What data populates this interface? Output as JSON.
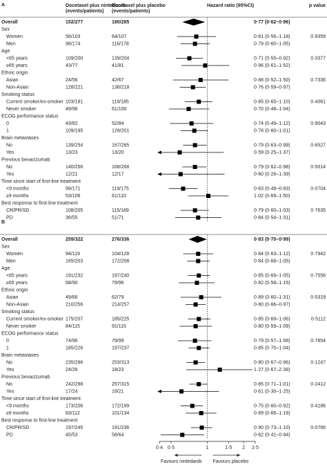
{
  "chart_data": [
    {
      "type": "forest",
      "title": "A",
      "log": true,
      "xlim": [
        0.4,
        2.5
      ],
      "headers": {
        "nintedanib": [
          "Docetaxel plus nintedanib",
          "(events/patients)"
        ],
        "placebo": [
          "Docetaxel plus placebo",
          "(events/patients)"
        ],
        "hr": "Hazard ratio (95%CI)",
        "p": "p value"
      },
      "rows": [
        {
          "label": "Overall",
          "nintedanib": "152/277",
          "placebo": "180/285",
          "hr": 0.77,
          "ci": [
            0.62,
            0.96
          ],
          "hr_label": "0·77 (0·62–0·96)",
          "marker": "diamond"
        },
        {
          "label": "Sex"
        },
        {
          "label": "Women",
          "nintedanib": "56/103",
          "placebo": "64/107",
          "hr": 0.81,
          "ci": [
            0.56,
            1.18
          ],
          "hr_label": "0·81 (0·56–1·18)",
          "p": "0·9359"
        },
        {
          "label": "Men",
          "nintedanib": "96/174",
          "placebo": "116/178",
          "hr": 0.79,
          "ci": [
            0.6,
            1.05
          ],
          "hr_label": "0·79 (0·60–1·05)"
        },
        {
          "label": "Age"
        },
        {
          "label": "<65 years",
          "nintedanib": "109/200",
          "placebo": "139/204",
          "hr": 0.71,
          "ci": [
            0.55,
            0.92
          ],
          "hr_label": "0·71 (0·55–0·92)",
          "p": "0·3377"
        },
        {
          "label": "≥65 years",
          "nintedanib": "43/77",
          "placebo": "41/81",
          "hr": 0.96,
          "ci": [
            0.61,
            1.52
          ],
          "hr_label": "0·96 (0·61–1·52)"
        },
        {
          "label": "Ethnic origin"
        },
        {
          "label": "Asian",
          "nintedanib": "24/56",
          "placebo": "42/67",
          "hr": 0.88,
          "ci": [
            0.52,
            1.5
          ],
          "hr_label": "0·88 (0·52–1·50)",
          "p": "0·7336"
        },
        {
          "label": "Non-Asian",
          "nintedanib": "128/221",
          "placebo": "138/218",
          "hr": 0.76,
          "ci": [
            0.59,
            0.97
          ],
          "hr_label": "0·76 (0·59–0·97)"
        },
        {
          "label": "Smoking status"
        },
        {
          "label": "Current smoker/ex-smoker",
          "nintedanib": "103/181",
          "placebo": "119/185",
          "hr": 0.85,
          "ci": [
            0.65,
            1.1
          ],
          "hr_label": "0·85 (0·65–1·10)",
          "p": "0·4061"
        },
        {
          "label": "Never smoker",
          "nintedanib": "49/96",
          "placebo": "61/100",
          "hr": 0.7,
          "ci": [
            0.48,
            1.04
          ],
          "hr_label": "0·70 (0·48–1·04)"
        },
        {
          "label": "ECOG performance status"
        },
        {
          "label": "0",
          "nintedanib": "43/82",
          "placebo": "52/84",
          "hr": 0.74,
          "ci": [
            0.49,
            1.12
          ],
          "hr_label": "0·74 (0·49–1·12)",
          "p": "0·9043"
        },
        {
          "label": "1",
          "nintedanib": "109/195",
          "placebo": "128/201",
          "hr": 0.78,
          "ci": [
            0.6,
            1.01
          ],
          "hr_label": "0·78 (0·60–1·01)"
        },
        {
          "label": "Brain metastases"
        },
        {
          "label": "No",
          "nintedanib": "139/254",
          "placebo": "167/265",
          "hr": 0.79,
          "ci": [
            0.63,
            0.99
          ],
          "hr_label": "0·79 (0·63–0·99)",
          "p": "0·6527"
        },
        {
          "label": "Yes",
          "nintedanib": "13/23",
          "placebo": "13/20",
          "hr": 0.59,
          "ci": [
            0.25,
            1.37
          ],
          "hr_label": "0·59 (0·25–1·37)"
        },
        {
          "label": "Previous bevacizumab"
        },
        {
          "label": "No",
          "nintedanib": "140/256",
          "placebo": "168/268",
          "hr": 0.79,
          "ci": [
            0.62,
            0.98
          ],
          "hr_label": "0·79 (0·62–0·98)",
          "p": "0·5014"
        },
        {
          "label": "Yes",
          "nintedanib": "12/21",
          "placebo": "12/17",
          "hr": 0.6,
          "ci": [
            0.26,
            1.39
          ],
          "hr_label": "0·60 (0·26–1·39)"
        },
        {
          "label": "Time since start of first-line treatment"
        },
        {
          "label": "<9 months",
          "nintedanib": "99/171",
          "placebo": "119/175",
          "hr": 0.63,
          "ci": [
            0.48,
            0.83
          ],
          "hr_label": "0·63 (0·48–0·83)",
          "p": "0·0704"
        },
        {
          "label": "≥9 months",
          "nintedanib": "53/106",
          "placebo": "61/110",
          "hr": 1.02,
          "ci": [
            0.69,
            1.5
          ],
          "hr_label": "1·02 (0·69–1·50)"
        },
        {
          "label": "Best response to first-line treatment"
        },
        {
          "label": "CR/PR/SD",
          "nintedanib": "108/205",
          "placebo": "115/189",
          "hr": 0.79,
          "ci": [
            0.6,
            1.03
          ],
          "hr_label": "0·79 (0·60–1·03)",
          "p": "0·7635"
        },
        {
          "label": "PD",
          "nintedanib": "36/55",
          "placebo": "51/71",
          "hr": 0.84,
          "ci": [
            0.54,
            1.31
          ],
          "hr_label": "0·84 (0·54–1·31)"
        }
      ]
    },
    {
      "type": "forest",
      "title": "B",
      "log": true,
      "xlim": [
        0.4,
        2.5
      ],
      "xticks": [
        {
          "value": 0.4,
          "label": "0·4"
        },
        {
          "value": 0.5,
          "label": "0·5"
        },
        1,
        {
          "value": 1.5,
          "label": "1·5"
        },
        2,
        {
          "value": 2.5,
          "label": "2·5"
        }
      ],
      "xlabel_left": "Favours nintedanib",
      "xlabel_right": "Favours placebo",
      "rows": [
        {
          "label": "Overall",
          "nintedanib": "259/322",
          "placebo": "276/336",
          "hr": 0.83,
          "ci": [
            0.7,
            0.99
          ],
          "hr_label": "0·83 (0·70–0·99)",
          "marker": "diamond"
        },
        {
          "label": "Sex"
        },
        {
          "label": "Women",
          "nintedanib": "94/119",
          "placebo": "104/128",
          "hr": 0.84,
          "ci": [
            0.63,
            1.12
          ],
          "hr_label": "0·84 (0·63–1·12)",
          "p": "0·7942"
        },
        {
          "label": "Men",
          "nintedanib": "165/203",
          "placebo": "172/208",
          "hr": 0.84,
          "ci": [
            0.68,
            1.05
          ],
          "hr_label": "0·84 (0·68–1·05)"
        },
        {
          "label": "Age"
        },
        {
          "label": "<65 years",
          "nintedanib": "191/232",
          "placebo": "197/240",
          "hr": 0.85,
          "ci": [
            0.69,
            1.05
          ],
          "hr_label": "0·85 (0·69–1·05)",
          "p": "0·7556"
        },
        {
          "label": "≥65 years",
          "nintedanib": "68/90",
          "placebo": "79/96",
          "hr": 0.82,
          "ci": [
            0.58,
            1.15
          ],
          "hr_label": "0·82 (0·58–1·15)"
        },
        {
          "label": "Ethnic origin"
        },
        {
          "label": "Asian",
          "nintedanib": "49/66",
          "placebo": "62/79",
          "hr": 0.89,
          "ci": [
            0.6,
            1.31
          ],
          "hr_label": "0·89 (0·60–1·31)",
          "p": "0·5319"
        },
        {
          "label": "Non-Asian",
          "nintedanib": "210/256",
          "placebo": "214/257",
          "hr": 0.8,
          "ci": [
            0.66,
            0.97
          ],
          "hr_label": "0·80 (0·66–0·97)"
        },
        {
          "label": "Smoking status"
        },
        {
          "label": "Current smoker/ex-smoker",
          "nintedanib": "175/207",
          "placebo": "185/225",
          "hr": 0.85,
          "ci": [
            0.69,
            1.06
          ],
          "hr_label": "0·85 (0·69–1·06)",
          "p": "0·5112"
        },
        {
          "label": "Never smoker",
          "nintedanib": "84/115",
          "placebo": "91/115",
          "hr": 0.8,
          "ci": [
            0.59,
            1.09
          ],
          "hr_label": "0·80 (0·59–1·09)"
        },
        {
          "label": "ECOG performance status"
        },
        {
          "label": "0",
          "nintedanib": "74/96",
          "placebo": "79/99",
          "hr": 0.79,
          "ci": [
            0.57,
            1.08
          ],
          "hr_label": "0·79 (0·57–1·08)",
          "p": "0·7854"
        },
        {
          "label": "1",
          "nintedanib": "185/226",
          "placebo": "197/237",
          "hr": 0.85,
          "ci": [
            0.7,
            1.04
          ],
          "hr_label": "0·85 (0·70–1·04)"
        },
        {
          "label": "Brain metastases"
        },
        {
          "label": "No",
          "nintedanib": "235/296",
          "placebo": "253/313",
          "hr": 0.8,
          "ci": [
            0.67,
            0.96
          ],
          "hr_label": "0·80 (0·67–0·96)",
          "p": "0·1247"
        },
        {
          "label": "Yes",
          "nintedanib": "24/26",
          "placebo": "18/23",
          "hr": 1.27,
          "ci": [
            0.67,
            2.38
          ],
          "hr_label": "1·27 (0·67–2·38)"
        },
        {
          "label": "Previous bevacizumab"
        },
        {
          "label": "No",
          "nintedanib": "242/298",
          "placebo": "257/315",
          "hr": 0.85,
          "ci": [
            0.71,
            1.01
          ],
          "hr_label": "0·85 (0·71–1·01)",
          "p": "0·2412"
        },
        {
          "label": "Yes",
          "nintedanib": "17/24",
          "placebo": "19/21",
          "hr": 0.61,
          "ci": [
            0.3,
            1.25
          ],
          "hr_label": "0·61 (0·30–1·25)"
        },
        {
          "label": "Time since start of first-line treatment"
        },
        {
          "label": "<9 months",
          "nintedanib": "173/206",
          "placebo": "172/199",
          "hr": 0.75,
          "ci": [
            0.6,
            0.92
          ],
          "hr_label": "0·75 (0·60–0·92)",
          "p": "0·4186"
        },
        {
          "label": "≥9 months",
          "nintedanib": "83/112",
          "placebo": "101/134",
          "hr": 0.89,
          "ci": [
            0.66,
            1.19
          ],
          "hr_label": "0·89 (0·66–1·19)"
        },
        {
          "label": "Best response to first-line treatment"
        },
        {
          "label": "CR/PR/SD",
          "nintedanib": "197/245",
          "placebo": "191/236",
          "hr": 0.9,
          "ci": [
            0.73,
            1.1
          ],
          "hr_label": "0·90 (0·73–1·10)",
          "p": "0·0766"
        },
        {
          "label": "PD",
          "nintedanib": "45/53",
          "placebo": "58/64",
          "hr": 0.62,
          "ci": [
            0.41,
            0.94
          ],
          "hr_label": "0·62 (0·41–0·94)"
        }
      ]
    }
  ]
}
